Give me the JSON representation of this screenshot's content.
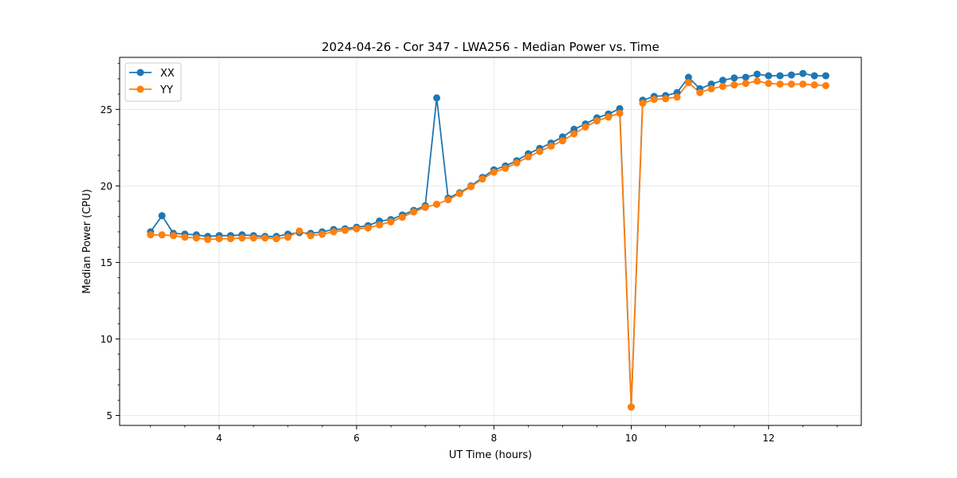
{
  "chart_data": {
    "type": "line",
    "title": "2024-04-26 - Cor 347 - LWA256 - Median Power vs. Time",
    "xlabel": "UT Time (hours)",
    "ylabel": "Median Power (CPU)",
    "xlim": [
      2.55,
      13.35
    ],
    "ylim": [
      4.35,
      28.4
    ],
    "xticks": [
      4,
      6,
      8,
      10,
      12
    ],
    "xtick_labels": [
      "4",
      "6",
      "8",
      "10",
      "12"
    ],
    "yticks": [
      5,
      10,
      15,
      20,
      25
    ],
    "ytick_labels": [
      "5",
      "10",
      "15",
      "20",
      "25"
    ],
    "grid": true,
    "legend_position": "upper-left",
    "x": [
      3.0,
      3.167,
      3.333,
      3.5,
      3.667,
      3.833,
      4.0,
      4.167,
      4.333,
      4.5,
      4.667,
      4.833,
      5.0,
      5.167,
      5.333,
      5.5,
      5.667,
      5.833,
      6.0,
      6.167,
      6.333,
      6.5,
      6.667,
      6.833,
      7.0,
      7.167,
      7.333,
      7.5,
      7.667,
      7.833,
      8.0,
      8.167,
      8.333,
      8.5,
      8.667,
      8.833,
      9.0,
      9.167,
      9.333,
      9.5,
      9.667,
      9.833,
      10.0,
      10.167,
      10.333,
      10.5,
      10.667,
      10.833,
      11.0,
      11.167,
      11.333,
      11.5,
      11.667,
      11.833,
      12.0,
      12.167,
      12.333,
      12.5,
      12.667,
      12.833
    ],
    "series": [
      {
        "name": "XX",
        "color": "#1f77b4",
        "values": [
          17.0,
          18.05,
          16.9,
          16.85,
          16.8,
          16.7,
          16.75,
          16.75,
          16.8,
          16.75,
          16.7,
          16.7,
          16.85,
          16.95,
          16.9,
          17.0,
          17.15,
          17.2,
          17.3,
          17.4,
          17.7,
          17.8,
          18.1,
          18.4,
          18.7,
          25.75,
          19.2,
          19.55,
          20.0,
          20.55,
          21.05,
          21.3,
          21.65,
          22.1,
          22.45,
          22.8,
          23.2,
          23.7,
          24.05,
          24.45,
          24.7,
          25.05,
          5.55,
          25.6,
          25.85,
          25.9,
          26.1,
          27.1,
          26.35,
          26.65,
          26.9,
          27.05,
          27.1,
          27.3,
          27.2,
          27.2,
          27.25,
          27.35,
          27.2,
          27.2
        ]
      },
      {
        "name": "YY",
        "color": "#ff7f0e",
        "values": [
          16.8,
          16.8,
          16.75,
          16.65,
          16.6,
          16.5,
          16.55,
          16.55,
          16.6,
          16.6,
          16.6,
          16.55,
          16.65,
          17.05,
          16.75,
          16.85,
          17.0,
          17.1,
          17.2,
          17.25,
          17.45,
          17.65,
          17.95,
          18.3,
          18.6,
          18.8,
          19.1,
          19.5,
          19.95,
          20.45,
          20.9,
          21.15,
          21.5,
          21.9,
          22.25,
          22.6,
          22.95,
          23.4,
          23.85,
          24.25,
          24.5,
          24.75,
          5.55,
          25.4,
          25.65,
          25.7,
          25.8,
          26.75,
          26.1,
          26.35,
          26.5,
          26.6,
          26.7,
          26.85,
          26.7,
          26.65,
          26.65,
          26.65,
          26.6,
          26.55
        ]
      }
    ]
  }
}
